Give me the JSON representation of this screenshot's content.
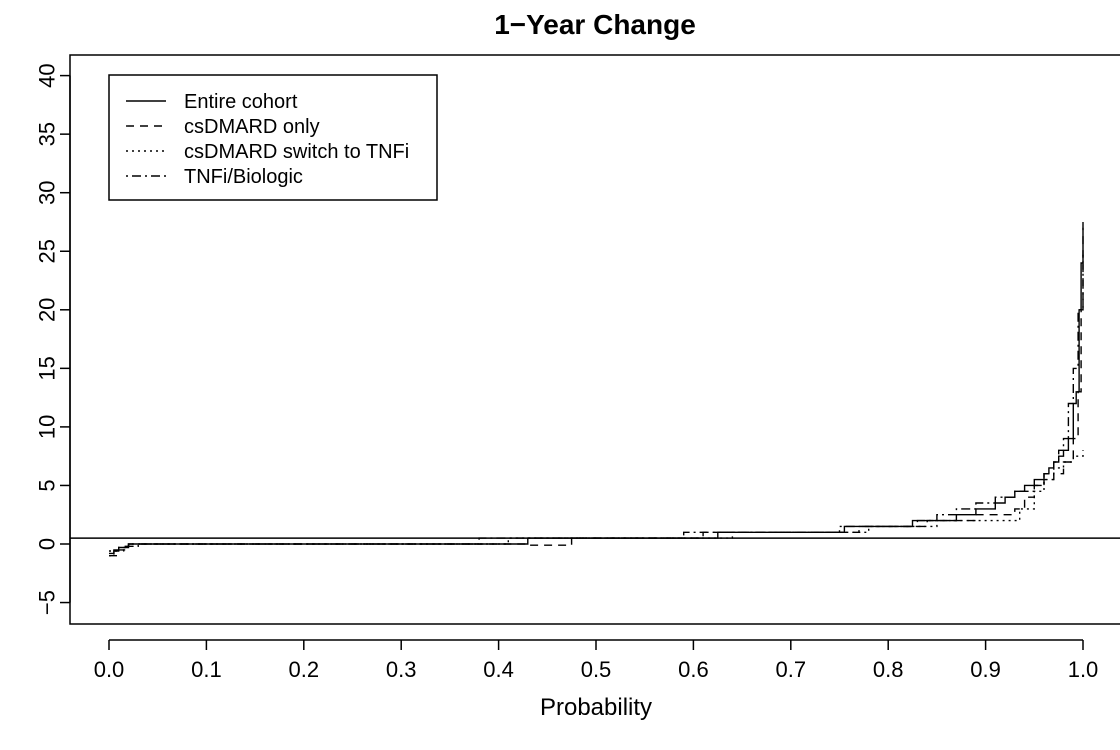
{
  "chart_data": {
    "type": "line",
    "title": "1−Year Change",
    "xlabel": "Probability",
    "ylabel": "",
    "xlim": [
      0.0,
      1.0
    ],
    "ylim": [
      -7,
      42
    ],
    "x_ticks": [
      "0.0",
      "0.1",
      "0.2",
      "0.3",
      "0.4",
      "0.5",
      "0.6",
      "0.7",
      "0.8",
      "0.9",
      "1.0"
    ],
    "y_ticks": [
      "−5",
      "0",
      "5",
      "10",
      "15",
      "20",
      "25",
      "30",
      "35",
      "40"
    ],
    "x_tick_values": [
      0.0,
      0.1,
      0.2,
      0.3,
      0.4,
      0.5,
      0.6,
      0.7,
      0.8,
      0.9,
      1.0
    ],
    "y_tick_values": [
      -5,
      0,
      5,
      10,
      15,
      20,
      25,
      30,
      35,
      40
    ],
    "hline": 0.5,
    "legend_position": "top-left",
    "grid": false,
    "series": [
      {
        "name": "Entire cohort",
        "style": "solid",
        "x": [
          0.0,
          0.005,
          0.01,
          0.02,
          0.38,
          0.425,
          0.43,
          0.62,
          0.625,
          0.75,
          0.755,
          0.82,
          0.825,
          0.86,
          0.87,
          0.88,
          0.89,
          0.9,
          0.91,
          0.92,
          0.93,
          0.94,
          0.95,
          0.96,
          0.965,
          0.97,
          0.975,
          0.98,
          0.985,
          0.99,
          0.993,
          0.996,
          0.998,
          1.0
        ],
        "y": [
          -0.8,
          -0.5,
          -0.3,
          0.0,
          0.0,
          0.0,
          0.5,
          0.5,
          1.0,
          1.0,
          1.5,
          1.5,
          2.0,
          2.0,
          2.5,
          2.5,
          3.0,
          3.0,
          3.5,
          4.0,
          4.5,
          5.0,
          5.5,
          6.0,
          6.5,
          7.0,
          7.5,
          8.0,
          9.0,
          12.0,
          13.0,
          20.0,
          24.0,
          27.5
        ]
      },
      {
        "name": "csDMARD only",
        "style": "dashed",
        "x": [
          0.0,
          0.01,
          0.02,
          0.42,
          0.43,
          0.47,
          0.475,
          0.6,
          0.61,
          0.76,
          0.77,
          0.83,
          0.84,
          0.88,
          0.89,
          0.92,
          0.93,
          0.94,
          0.95,
          0.96,
          0.97,
          0.98,
          0.99,
          0.995,
          0.998,
          1.0
        ],
        "y": [
          -1.0,
          -0.5,
          0.0,
          0.0,
          -0.1,
          -0.1,
          0.5,
          0.5,
          1.0,
          1.0,
          1.5,
          1.5,
          2.0,
          2.0,
          2.5,
          2.5,
          3.0,
          4.0,
          5.0,
          5.5,
          6.0,
          7.0,
          9.0,
          13.0,
          20.0,
          27.0
        ]
      },
      {
        "name": "csDMARD switch to TNFi",
        "style": "dotted",
        "x": [
          0.0,
          0.01,
          0.02,
          0.4,
          0.41,
          0.63,
          0.64,
          0.77,
          0.78,
          0.84,
          0.85,
          0.89,
          0.9,
          0.925,
          0.935,
          0.95,
          0.96,
          0.97,
          0.98,
          0.99,
          1.0
        ],
        "y": [
          -0.6,
          -0.3,
          0.0,
          0.0,
          0.5,
          0.5,
          1.0,
          1.0,
          1.5,
          1.5,
          2.0,
          2.0,
          2.0,
          2.0,
          3.0,
          4.5,
          5.5,
          6.5,
          7.0,
          7.5,
          8.0
        ]
      },
      {
        "name": "TNFi/Biologic",
        "style": "dashdot",
        "x": [
          0.0,
          0.005,
          0.015,
          0.03,
          0.37,
          0.38,
          0.58,
          0.59,
          0.74,
          0.75,
          0.81,
          0.83,
          0.85,
          0.87,
          0.89,
          0.91,
          0.93,
          0.95,
          0.96,
          0.97,
          0.975,
          0.98,
          0.985,
          0.99,
          0.995,
          1.0
        ],
        "y": [
          -1.0,
          -0.6,
          -0.2,
          0.0,
          0.0,
          0.5,
          0.5,
          1.0,
          1.0,
          1.5,
          1.5,
          2.0,
          2.5,
          3.0,
          3.5,
          4.0,
          4.5,
          5.0,
          6.0,
          7.0,
          8.0,
          9.0,
          12.0,
          15.0,
          20.0,
          25.0
        ]
      }
    ]
  }
}
